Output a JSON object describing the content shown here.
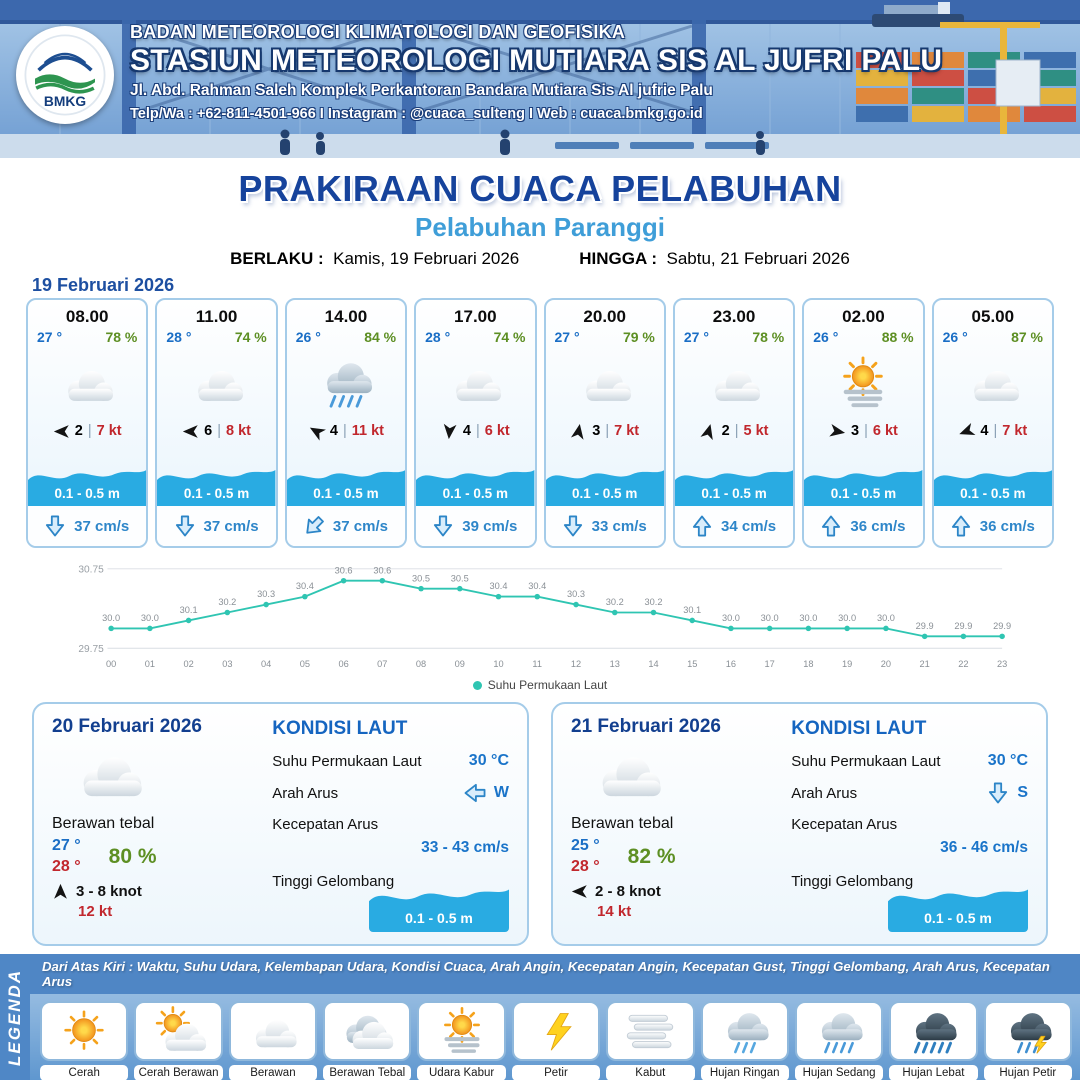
{
  "header": {
    "logo": "BMKG",
    "agency": "BADAN METEOROLOGI KLIMATOLOGI DAN GEOFISIKA",
    "station": "STASIUN METEOROLOGI MUTIARA SIS AL JUFRI PALU",
    "address": "Jl. Abd. Rahman Saleh Komplek Perkantoran Bandara Mutiara Sis Al jufrie Palu",
    "contact": "Telp/Wa : +62-811-4501-966  I  Instagram : @cuaca_sulteng  I  Web : cuaca.bmkg.go.id"
  },
  "title": {
    "main": "PRAKIRAAN CUACA PELABUHAN",
    "sub": "Pelabuhan Paranggi",
    "berlaku_label": "BERLAKU :",
    "berlaku_value": "Kamis, 19 Februari 2026",
    "hingga_label": "HINGGA :",
    "hingga_value": "Sabtu, 21 Februari 2026"
  },
  "hourly": {
    "date": "19 Februari 2026",
    "cards": [
      {
        "time": "08.00",
        "temp": "27 °",
        "rh": "78 %",
        "icon": "berawan",
        "wind_deg": 270,
        "wind_num": "2",
        "gust": "7 kt",
        "wave": "0.1 - 0.5 m",
        "cur_dir": "down",
        "cur": "37 cm/s"
      },
      {
        "time": "11.00",
        "temp": "28 °",
        "rh": "74 %",
        "icon": "berawan",
        "wind_deg": 270,
        "wind_num": "6",
        "gust": "8 kt",
        "wave": "0.1 - 0.5 m",
        "cur_dir": "down",
        "cur": "37 cm/s"
      },
      {
        "time": "14.00",
        "temp": "26 °",
        "rh": "84 %",
        "icon": "hujan-sedang",
        "wind_deg": 300,
        "wind_num": "4",
        "gust": "11 kt",
        "wave": "0.1 - 0.5 m",
        "cur_dir": "down-left",
        "cur": "37 cm/s"
      },
      {
        "time": "17.00",
        "temp": "28 °",
        "rh": "74 %",
        "icon": "berawan",
        "wind_deg": 185,
        "wind_num": "4",
        "gust": "6 kt",
        "wave": "0.1 - 0.5 m",
        "cur_dir": "down",
        "cur": "39 cm/s"
      },
      {
        "time": "20.00",
        "temp": "27 °",
        "rh": "79 %",
        "icon": "berawan",
        "wind_deg": 10,
        "wind_num": "3",
        "gust": "7 kt",
        "wave": "0.1 - 0.5 m",
        "cur_dir": "down",
        "cur": "33 cm/s"
      },
      {
        "time": "23.00",
        "temp": "27 °",
        "rh": "78 %",
        "icon": "berawan",
        "wind_deg": 15,
        "wind_num": "2",
        "gust": "5 kt",
        "wave": "0.1 - 0.5 m",
        "cur_dir": "up",
        "cur": "34 cm/s"
      },
      {
        "time": "02.00",
        "temp": "26 °",
        "rh": "88 %",
        "icon": "udara-kabur",
        "wind_deg": 100,
        "wind_num": "3",
        "gust": "6 kt",
        "wave": "0.1 - 0.5 m",
        "cur_dir": "up",
        "cur": "36 cm/s"
      },
      {
        "time": "05.00",
        "temp": "26 °",
        "rh": "87 %",
        "icon": "berawan",
        "wind_deg": 250,
        "wind_num": "4",
        "gust": "7 kt",
        "wave": "0.1 - 0.5 m",
        "cur_dir": "up",
        "cur": "36 cm/s"
      }
    ]
  },
  "chart_data": {
    "type": "line",
    "legend": "Suhu Permukaan Laut",
    "x": [
      "00",
      "01",
      "02",
      "03",
      "04",
      "05",
      "06",
      "07",
      "08",
      "09",
      "10",
      "11",
      "12",
      "13",
      "14",
      "15",
      "16",
      "17",
      "18",
      "19",
      "20",
      "21",
      "22",
      "23"
    ],
    "values": [
      30.0,
      30.0,
      30.1,
      30.2,
      30.3,
      30.4,
      30.6,
      30.6,
      30.5,
      30.5,
      30.4,
      30.4,
      30.3,
      30.2,
      30.2,
      30.1,
      30.0,
      30.0,
      30.0,
      30.0,
      30.0,
      29.9,
      29.9,
      29.9
    ],
    "ylim": [
      29.75,
      30.75
    ],
    "yticks": [
      29.75,
      30.75
    ],
    "line_color": "#2fc5b2",
    "grid": true,
    "legend_position": "bottom-center"
  },
  "daily": [
    {
      "date": "20 Februari 2026",
      "icon": "berawan",
      "desc": "Berawan tebal",
      "temp_min": "27 °",
      "temp_max": "28 °",
      "rh": "80 %",
      "wind_deg": 0,
      "wind_range": "3  - 8 knot",
      "gust": "12 kt",
      "sea": {
        "title": "KONDISI LAUT",
        "sst_label": "Suhu Permukaan Laut",
        "sst": "30 °C",
        "arus_label": "Arah Arus",
        "arus_dir": "left",
        "arus_letter": "W",
        "kec_label": "Kecepatan Arus",
        "kec": "33  - 43 cm/s",
        "gel_label": "Tinggi Gelombang",
        "gel": "0.1 - 0.5 m"
      }
    },
    {
      "date": "21 Februari 2026",
      "icon": "berawan",
      "desc": "Berawan tebal",
      "temp_min": "25 °",
      "temp_max": "28 °",
      "rh": "82 %",
      "wind_deg": 270,
      "wind_range": "2  - 8 knot",
      "gust": "14 kt",
      "sea": {
        "title": "KONDISI LAUT",
        "sst_label": "Suhu Permukaan Laut",
        "sst": "30 °C",
        "arus_label": "Arah Arus",
        "arus_dir": "down",
        "arus_letter": "S",
        "kec_label": "Kecepatan Arus",
        "kec": "36  - 46 cm/s",
        "gel_label": "Tinggi Gelombang",
        "gel": "0.1 - 0.5 m"
      }
    }
  ],
  "legend": {
    "title": "LEGENDA",
    "note": "Dari Atas Kiri : Waktu, Suhu Udara, Kelembapan Udara, Kondisi Cuaca, Arah Angin, Kecepatan Angin, Kecepatan Gust, Tinggi Gelombang, Arah Arus, Kecepatan Arus",
    "items": [
      {
        "label": "Cerah",
        "icon": "cerah"
      },
      {
        "label": "Cerah Berawan",
        "icon": "cerah-berawan"
      },
      {
        "label": "Berawan",
        "icon": "berawan"
      },
      {
        "label": "Berawan Tebal",
        "icon": "berawan-tebal"
      },
      {
        "label": "Udara Kabur",
        "icon": "udara-kabur"
      },
      {
        "label": "Petir",
        "icon": "petir"
      },
      {
        "label": "Kabut",
        "icon": "kabut"
      },
      {
        "label": "Hujan Ringan",
        "icon": "hujan-ringan"
      },
      {
        "label": "Hujan Sedang",
        "icon": "hujan-sedang"
      },
      {
        "label": "Hujan Lebat",
        "icon": "hujan-lebat"
      },
      {
        "label": "Hujan Petir",
        "icon": "hujan-petir"
      }
    ]
  },
  "colors": {
    "title_blue": "#16439c",
    "subtitle_blue": "#3f9ed8",
    "temp_blue": "#1a6ec5",
    "humidity_green": "#5d8f23",
    "gust_red": "#c1272d",
    "wave_blue": "#29abe2",
    "current_blue": "#2e86c9",
    "chart_line_teal": "#2fc5b2"
  }
}
